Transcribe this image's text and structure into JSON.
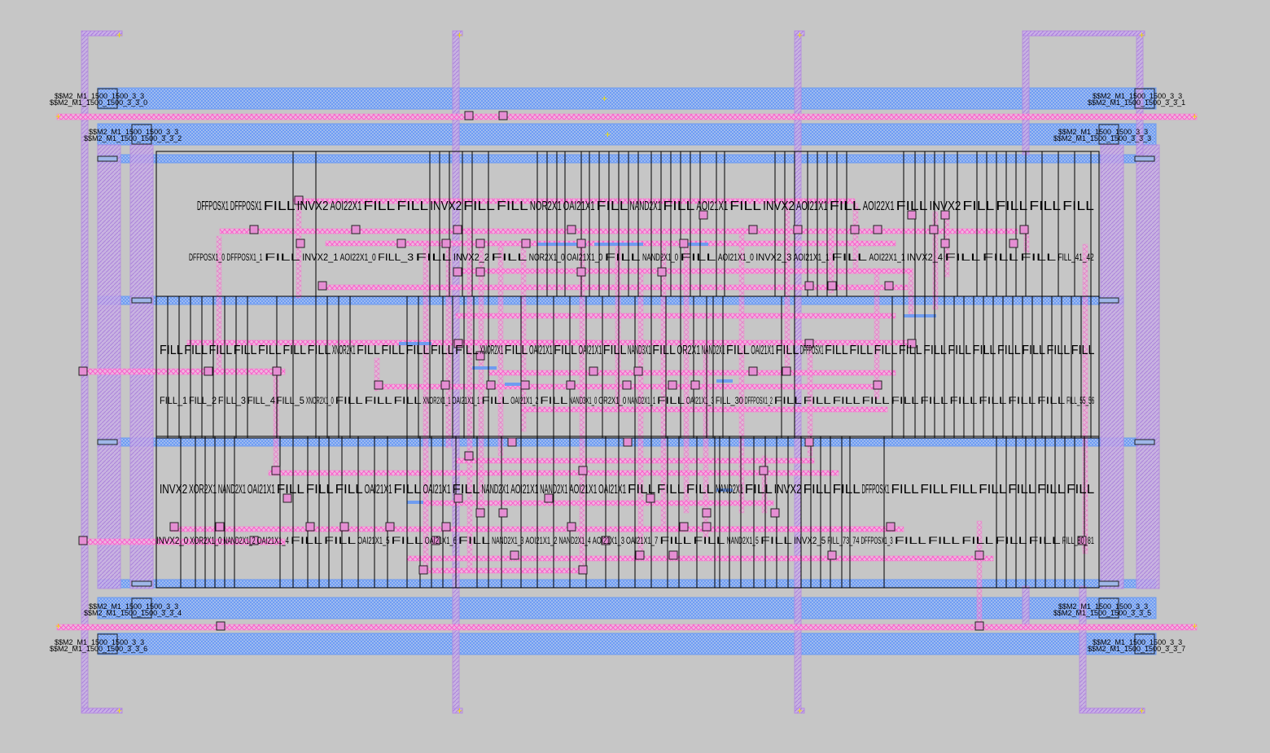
{
  "colors": {
    "background": "#c6c6c6",
    "metal1": "#6f9cf0",
    "metal2": "#ff6fd2",
    "metal3": "#b58be0",
    "cell_outline": "#000000",
    "via_fill": "#e58ed3",
    "pin_marker": "#f0e000"
  },
  "via_labels": [
    {
      "line1": "$$M2_M1_1500_1500_3_3",
      "line2": "$$M2_M1_1500_1500_3_3_0"
    },
    {
      "line1": "$$M2_M1_1500_1500_3_3",
      "line2": "$$M2_M1_1500_1500_3_3_1"
    },
    {
      "line1": "$$M2_M1_1500_1500_3_3",
      "line2": "$$M2_M1_1500_1500_3_3_2"
    },
    {
      "line1": "$$M2_M1_1500_1500_3_3",
      "line2": "$$M2_M1_1500_1500_3_3_3"
    },
    {
      "line1": "$$M2_M1_1500_1500_3_3",
      "line2": "$$M2_M1_1500_1500_3_3_4"
    },
    {
      "line1": "$$M2_M1_1500_1500_3_3",
      "line2": "$$M2_M1_1500_1500_3_3_5"
    },
    {
      "line1": "$$M2_M1_1500_1500_3_3",
      "line2": "$$M2_M1_1500_1500_3_3_6"
    },
    {
      "line1": "$$M2_M1_1500_1500_3_3",
      "line2": "$$M2_M1_1500_1500_3_3_7"
    }
  ],
  "cells": {
    "row1": {
      "big": [
        "DFFPOSX1",
        "DFFPOSX1",
        "FILL",
        "INVX2",
        "AOI22X1",
        "FILL",
        "FILL",
        "INVX2",
        "FILL",
        "FILL",
        "NOR2X1",
        "OAI21X1",
        "FILL",
        "NAND2X1",
        "FILL",
        "AOI21X1",
        "FILL",
        "INVX2",
        "AOI21X1",
        "FILL",
        "AOI22X1",
        "FILL",
        "INVX2",
        "FILL",
        "FILL",
        "FILL",
        "FILL"
      ],
      "inst": [
        "DFFPOSX1_0",
        "DFFPOSX1_1",
        "FILL",
        "INVX2_1",
        "AOI22X1_0",
        "FILL_3",
        "FILL",
        "INVX2_2",
        "FILL",
        "NOR2X1_0",
        "OAI21X1_0",
        "FILL",
        "NAND2X1_0",
        "FILL",
        "AOI21X1_0",
        "INVX2_3",
        "AOI21X1_1",
        "FILL",
        "AOI22X1_1",
        "INVX2_4",
        "FILL",
        "FILL",
        "FILL",
        "FILL_41_42"
      ]
    },
    "row2": {
      "big": [
        "FILL",
        "FILL",
        "FILL",
        "FILL",
        "FILL",
        "FILL",
        "FILL",
        "XNOR2X1",
        "FILL",
        "FILL",
        "FILL",
        "FILL",
        "FILL",
        "XNOR2X1",
        "FILL",
        "OAI21X1",
        "FILL",
        "OAI21X1",
        "FILL",
        "NAND3X1",
        "FILL",
        "OR2X1",
        "NAND2X1",
        "FILL",
        "OAI21X1",
        "FILL",
        "DFFPOSX1",
        "FILL",
        "FILL",
        "FILL",
        "FILL",
        "FILL",
        "FILL",
        "FILL",
        "FILL",
        "FILL",
        "FILL",
        "FILL"
      ],
      "inst": [
        "FILL_1",
        "FILL_2",
        "FILL_3",
        "FILL_4",
        "FILL_5",
        "XNOR2X1_0",
        "FILL",
        "FILL",
        "FILL",
        "XNOR2X1_1",
        "OAI21X1_1",
        "FILL",
        "OAI21X1_2",
        "FILL",
        "NAND3X1_0",
        "OR2X1_0",
        "NAND2X1_1",
        "FILL",
        "OAI21X1_3",
        "FILL_30",
        "DFFPOSX1_2",
        "FILL",
        "FILL",
        "FILL",
        "FILL",
        "FILL",
        "FILL",
        "FILL",
        "FILL",
        "FILL",
        "FILL",
        "FILL_55_56"
      ]
    },
    "row3": {
      "big": [
        "INVX2",
        "XOR2X1",
        "NAND2X1",
        "OAI21X1",
        "FILL",
        "FILL",
        "FILL",
        "OAI21X1",
        "FILL",
        "OAI21X1",
        "FILL",
        "NAND2X1",
        "AOI21X1",
        "NAND2X1",
        "AOI21X1",
        "OAI21X1",
        "FILL",
        "FILL",
        "FILL",
        "NAND2X1",
        "FILL",
        "INVX2",
        "FILL",
        "FILL",
        "DFFPOSX1",
        "FILL",
        "FILL",
        "FILL",
        "FILL",
        "FILL",
        "FILL",
        "FILL"
      ],
      "inst": [
        "INVX2_0",
        "XOR2X1_0",
        "NAND2X1_2",
        "OAI21X1_4",
        "FILL",
        "FILL",
        "OAI21X1_5",
        "FILL",
        "OAI21X1_6",
        "FILL",
        "NAND2X1_3",
        "AOI21X1_2",
        "NAND2X1_4",
        "AOI21X1_3",
        "OAI21X1_7",
        "FILL",
        "FILL",
        "NAND2X1_5",
        "FILL",
        "INVX2_5",
        "FILL_73_74",
        "DFFPOSX1_3",
        "FILL",
        "FILL",
        "FILL",
        "FILL",
        "FILL",
        "FILL_80_81"
      ]
    }
  }
}
